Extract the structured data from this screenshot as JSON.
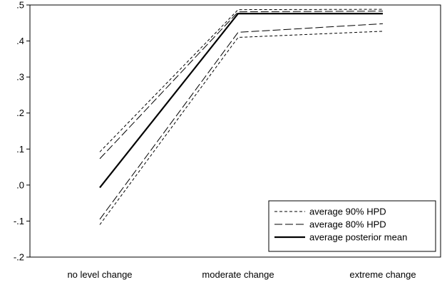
{
  "chart_data": {
    "type": "line",
    "categories": [
      "no level change",
      "moderate change",
      "extreme change"
    ],
    "ylim": [
      -0.2,
      0.5
    ],
    "yticks": [
      -0.2,
      -0.1,
      0.0,
      0.1,
      0.2,
      0.3,
      0.4,
      0.5
    ],
    "ytick_labels": [
      "-.2",
      "-.1",
      ".0",
      ".1",
      ".2",
      ".3",
      ".4",
      ".5"
    ],
    "grid": false,
    "legend_position": "bottom-right",
    "series": [
      {
        "name": "average 90% HPD",
        "style": "short-dash",
        "values": [
          -0.11,
          0.41,
          0.427
        ]
      },
      {
        "name": "average 90% HPD",
        "style": "short-dash",
        "values": [
          0.092,
          0.487,
          0.488
        ]
      },
      {
        "name": "average 80% HPD",
        "style": "long-dash",
        "values": [
          -0.095,
          0.424,
          0.448
        ]
      },
      {
        "name": "average 80% HPD",
        "style": "long-dash",
        "values": [
          0.073,
          0.481,
          0.483
        ]
      },
      {
        "name": "average posterior mean",
        "style": "solid",
        "values": [
          -0.007,
          0.476,
          0.476
        ]
      }
    ],
    "legend": [
      {
        "label": "average 90% HPD",
        "style": "short-dash"
      },
      {
        "label": "average 80% HPD",
        "style": "long-dash"
      },
      {
        "label": "average posterior mean",
        "style": "solid"
      }
    ]
  }
}
